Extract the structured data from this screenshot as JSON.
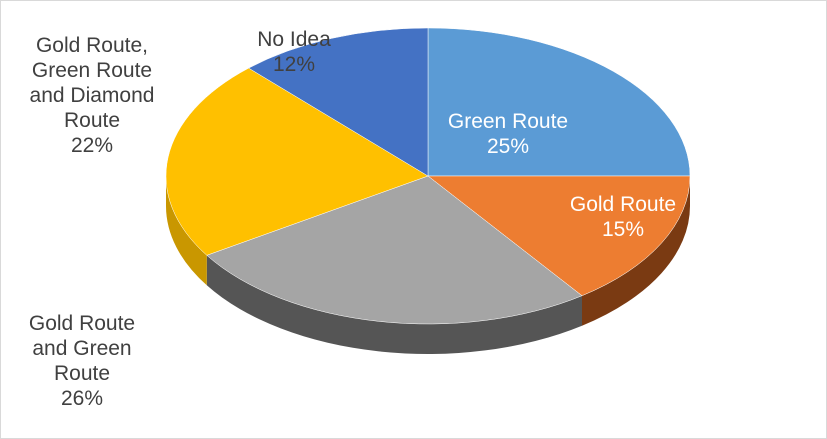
{
  "chart_data": {
    "type": "pie",
    "title": "",
    "slices": [
      {
        "label": "Green Route",
        "value": 25,
        "color": "#5b9bd5",
        "side": "#3d6f9e"
      },
      {
        "label": "Gold Route",
        "value": 15,
        "color": "#ed7d31",
        "side": "#7a3a12"
      },
      {
        "label": "Gold Route and Green Route",
        "value": 26,
        "color": "#a5a5a5",
        "side": "#555555"
      },
      {
        "label": "Gold Route, Green Route and Diamond Route",
        "value": 22,
        "color": "#ffc000",
        "side": "#c99700"
      },
      {
        "label": "No Idea",
        "value": 12,
        "color": "#4472c4",
        "side": "#2c4f8c"
      }
    ],
    "labels": [
      {
        "lines": [
          "Green Route",
          "25%"
        ]
      },
      {
        "lines": [
          "Gold Route",
          "15%"
        ]
      },
      {
        "lines": [
          "Gold Route",
          "and Green",
          "Route",
          "26%"
        ]
      },
      {
        "lines": [
          "Gold Route,",
          "Green Route",
          "and Diamond",
          "Route",
          "22%"
        ]
      },
      {
        "lines": [
          "No Idea",
          "12%"
        ]
      }
    ],
    "legend": "none",
    "style": "3d"
  }
}
